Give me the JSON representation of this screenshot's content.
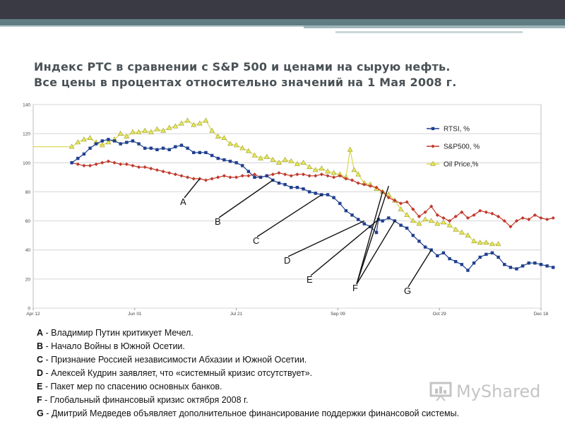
{
  "slide": {
    "title_line1": "Индекс РТС в сравнении с S&P 500 и ценами на сырую нефть.",
    "title_line2": "Все цены в процентах относительно значений на 1 Мая 2008 г.",
    "watermark": "MyShared",
    "notes": [
      {
        "key": "A",
        "text": " - Владимир Путин критикует Мечел."
      },
      {
        "key": "B",
        "text": " - Начало Войны в Южной Осетии."
      },
      {
        "key": "C",
        "text": " - Признание Россией независимости Абхазии и Южной Осетии."
      },
      {
        "key": "D",
        "text": " - Алексей Кудрин заявляет, что «системный кризис отсутствует»."
      },
      {
        "key": "E",
        "text": " - Пакет мер по спасению основных банков."
      },
      {
        "key": "F",
        "text": " - Глобальный финансовый кризис октября 2008 г."
      },
      {
        "key": "G",
        "text": " - Дмитрий Медведев объявляет дополнительное финансирование поддержки финансовой системы."
      }
    ]
  },
  "chart_data": {
    "type": "line",
    "ylim": [
      0,
      140
    ],
    "yticks": [
      0,
      20,
      40,
      60,
      80,
      100,
      120,
      140
    ],
    "xlim": [
      0,
      250
    ],
    "xticks": [
      {
        "x": 0,
        "label": "Apr 12"
      },
      {
        "x": 50,
        "label": "Jun 01"
      },
      {
        "x": 100,
        "label": "Jul 21"
      },
      {
        "x": 150,
        "label": "Sep 09"
      },
      {
        "x": 200,
        "label": "Oct 29"
      },
      {
        "x": 250,
        "label": "Dec 18"
      }
    ],
    "grid": true,
    "legend_position": "top-right",
    "series": [
      {
        "name": "RTSI, %",
        "color": "#1f3f8f",
        "marker": "square",
        "points": [
          [
            19,
            100
          ],
          [
            22,
            103
          ],
          [
            25,
            106
          ],
          [
            28,
            110
          ],
          [
            31,
            113
          ],
          [
            34,
            115
          ],
          [
            37,
            116
          ],
          [
            40,
            115
          ],
          [
            43,
            113
          ],
          [
            46,
            114
          ],
          [
            49,
            115
          ],
          [
            52,
            113
          ],
          [
            55,
            110
          ],
          [
            58,
            110
          ],
          [
            61,
            109
          ],
          [
            64,
            110
          ],
          [
            67,
            109
          ],
          [
            70,
            111
          ],
          [
            73,
            112
          ],
          [
            76,
            110
          ],
          [
            79,
            107
          ],
          [
            82,
            107
          ],
          [
            85,
            107
          ],
          [
            88,
            105
          ],
          [
            91,
            103
          ],
          [
            94,
            102
          ],
          [
            97,
            101
          ],
          [
            100,
            100
          ],
          [
            103,
            98
          ],
          [
            106,
            94
          ],
          [
            109,
            90
          ],
          [
            112,
            90
          ],
          [
            115,
            91
          ],
          [
            118,
            88
          ],
          [
            121,
            86
          ],
          [
            124,
            85
          ],
          [
            127,
            83
          ],
          [
            130,
            83
          ],
          [
            133,
            82
          ],
          [
            136,
            80
          ],
          [
            139,
            79
          ],
          [
            142,
            78
          ],
          [
            145,
            78
          ],
          [
            148,
            76
          ],
          [
            151,
            72
          ],
          [
            154,
            67
          ],
          [
            157,
            64
          ],
          [
            160,
            61
          ],
          [
            163,
            58
          ],
          [
            166,
            56
          ],
          [
            169,
            52
          ],
          [
            170,
            61
          ],
          [
            172,
            60
          ],
          [
            175,
            62
          ],
          [
            178,
            60
          ],
          [
            181,
            57
          ],
          [
            184,
            55
          ],
          [
            187,
            50
          ],
          [
            190,
            46
          ],
          [
            193,
            42
          ],
          [
            196,
            40
          ],
          [
            199,
            36
          ],
          [
            202,
            38
          ],
          [
            205,
            34
          ],
          [
            208,
            32
          ],
          [
            211,
            30
          ],
          [
            214,
            26
          ],
          [
            217,
            31
          ],
          [
            220,
            35
          ],
          [
            223,
            37
          ],
          [
            226,
            38
          ],
          [
            229,
            35
          ],
          [
            232,
            30
          ],
          [
            235,
            28
          ],
          [
            238,
            27
          ],
          [
            241,
            29
          ],
          [
            244,
            31
          ],
          [
            247,
            31
          ],
          [
            250,
            30
          ],
          [
            253,
            29
          ],
          [
            256,
            28
          ]
        ]
      },
      {
        "name": "S&P500, %",
        "color": "#c0392b",
        "marker": "diamond",
        "points": [
          [
            19,
            100
          ],
          [
            22,
            99
          ],
          [
            25,
            98
          ],
          [
            28,
            98
          ],
          [
            31,
            99
          ],
          [
            34,
            100
          ],
          [
            37,
            101
          ],
          [
            40,
            100
          ],
          [
            43,
            99
          ],
          [
            46,
            99
          ],
          [
            49,
            98
          ],
          [
            52,
            97
          ],
          [
            55,
            97
          ],
          [
            58,
            96
          ],
          [
            61,
            95
          ],
          [
            64,
            94
          ],
          [
            67,
            93
          ],
          [
            70,
            92
          ],
          [
            73,
            91
          ],
          [
            76,
            90
          ],
          [
            79,
            89
          ],
          [
            82,
            89
          ],
          [
            85,
            88
          ],
          [
            88,
            89
          ],
          [
            91,
            90
          ],
          [
            94,
            91
          ],
          [
            97,
            90
          ],
          [
            100,
            90
          ],
          [
            103,
            91
          ],
          [
            106,
            91
          ],
          [
            109,
            92
          ],
          [
            112,
            90
          ],
          [
            115,
            91
          ],
          [
            118,
            92
          ],
          [
            121,
            93
          ],
          [
            124,
            92
          ],
          [
            127,
            91
          ],
          [
            130,
            92
          ],
          [
            133,
            92
          ],
          [
            136,
            91
          ],
          [
            139,
            91
          ],
          [
            142,
            92
          ],
          [
            145,
            91
          ],
          [
            148,
            90
          ],
          [
            151,
            91
          ],
          [
            154,
            89
          ],
          [
            157,
            88
          ],
          [
            160,
            86
          ],
          [
            163,
            85
          ],
          [
            166,
            84
          ],
          [
            169,
            83
          ],
          [
            172,
            80
          ],
          [
            175,
            76
          ],
          [
            178,
            74
          ],
          [
            181,
            72
          ],
          [
            184,
            73
          ],
          [
            187,
            68
          ],
          [
            190,
            63
          ],
          [
            193,
            66
          ],
          [
            196,
            70
          ],
          [
            199,
            64
          ],
          [
            202,
            62
          ],
          [
            205,
            60
          ],
          [
            208,
            63
          ],
          [
            211,
            66
          ],
          [
            214,
            62
          ],
          [
            217,
            64
          ],
          [
            220,
            67
          ],
          [
            223,
            66
          ],
          [
            226,
            65
          ],
          [
            229,
            63
          ],
          [
            232,
            60
          ],
          [
            235,
            56
          ],
          [
            238,
            60
          ],
          [
            241,
            62
          ],
          [
            244,
            61
          ],
          [
            247,
            64
          ],
          [
            250,
            62
          ],
          [
            253,
            61
          ],
          [
            256,
            62
          ]
        ]
      },
      {
        "name": "Oil Price,%",
        "color": "#c8c84a",
        "marker": "triangle",
        "points": [
          [
            0,
            111
          ],
          [
            19,
            111
          ],
          [
            22,
            114
          ],
          [
            25,
            116
          ],
          [
            28,
            117
          ],
          [
            31,
            114
          ],
          [
            34,
            112
          ],
          [
            37,
            114
          ],
          [
            40,
            116
          ],
          [
            43,
            120
          ],
          [
            46,
            118
          ],
          [
            49,
            121
          ],
          [
            52,
            121
          ],
          [
            55,
            122
          ],
          [
            58,
            121
          ],
          [
            61,
            123
          ],
          [
            64,
            122
          ],
          [
            67,
            124
          ],
          [
            70,
            125
          ],
          [
            73,
            127
          ],
          [
            76,
            129
          ],
          [
            79,
            126
          ],
          [
            82,
            127
          ],
          [
            85,
            129
          ],
          [
            88,
            122
          ],
          [
            91,
            118
          ],
          [
            94,
            117
          ],
          [
            97,
            113
          ],
          [
            100,
            112
          ],
          [
            103,
            110
          ],
          [
            106,
            108
          ],
          [
            109,
            105
          ],
          [
            112,
            103
          ],
          [
            115,
            104
          ],
          [
            118,
            102
          ],
          [
            121,
            100
          ],
          [
            124,
            102
          ],
          [
            127,
            101
          ],
          [
            130,
            99
          ],
          [
            133,
            100
          ],
          [
            136,
            97
          ],
          [
            139,
            95
          ],
          [
            142,
            96
          ],
          [
            145,
            94
          ],
          [
            148,
            93
          ],
          [
            151,
            92
          ],
          [
            154,
            90
          ],
          [
            156,
            109
          ],
          [
            158,
            95
          ],
          [
            160,
            92
          ],
          [
            163,
            86
          ],
          [
            166,
            85
          ],
          [
            169,
            82
          ],
          [
            172,
            80
          ],
          [
            175,
            78
          ],
          [
            178,
            74
          ],
          [
            181,
            68
          ],
          [
            184,
            64
          ],
          [
            187,
            60
          ],
          [
            190,
            58
          ],
          [
            193,
            61
          ],
          [
            196,
            60
          ],
          [
            199,
            58
          ],
          [
            202,
            59
          ],
          [
            205,
            57
          ],
          [
            208,
            54
          ],
          [
            211,
            52
          ],
          [
            214,
            50
          ],
          [
            217,
            46
          ],
          [
            220,
            45
          ],
          [
            223,
            45
          ],
          [
            226,
            44
          ],
          [
            229,
            44
          ]
        ]
      }
    ],
    "annotations": [
      {
        "label": "A",
        "points_to": [
          [
            82,
            89
          ]
        ]
      },
      {
        "label": "B",
        "points_to": [
          [
            118,
            88
          ]
        ]
      },
      {
        "label": "C",
        "points_to": [
          [
            142,
            78
          ]
        ]
      },
      {
        "label": "D",
        "points_to": [
          [
            163,
            60
          ]
        ]
      },
      {
        "label": "E",
        "points_to": [
          [
            170,
            61
          ]
        ]
      },
      {
        "label": "F",
        "points_to": [
          [
            172,
            80
          ],
          [
            175,
            84
          ],
          [
            178,
            60
          ]
        ]
      },
      {
        "label": "G",
        "points_to": [
          [
            196,
            40
          ]
        ]
      }
    ]
  }
}
